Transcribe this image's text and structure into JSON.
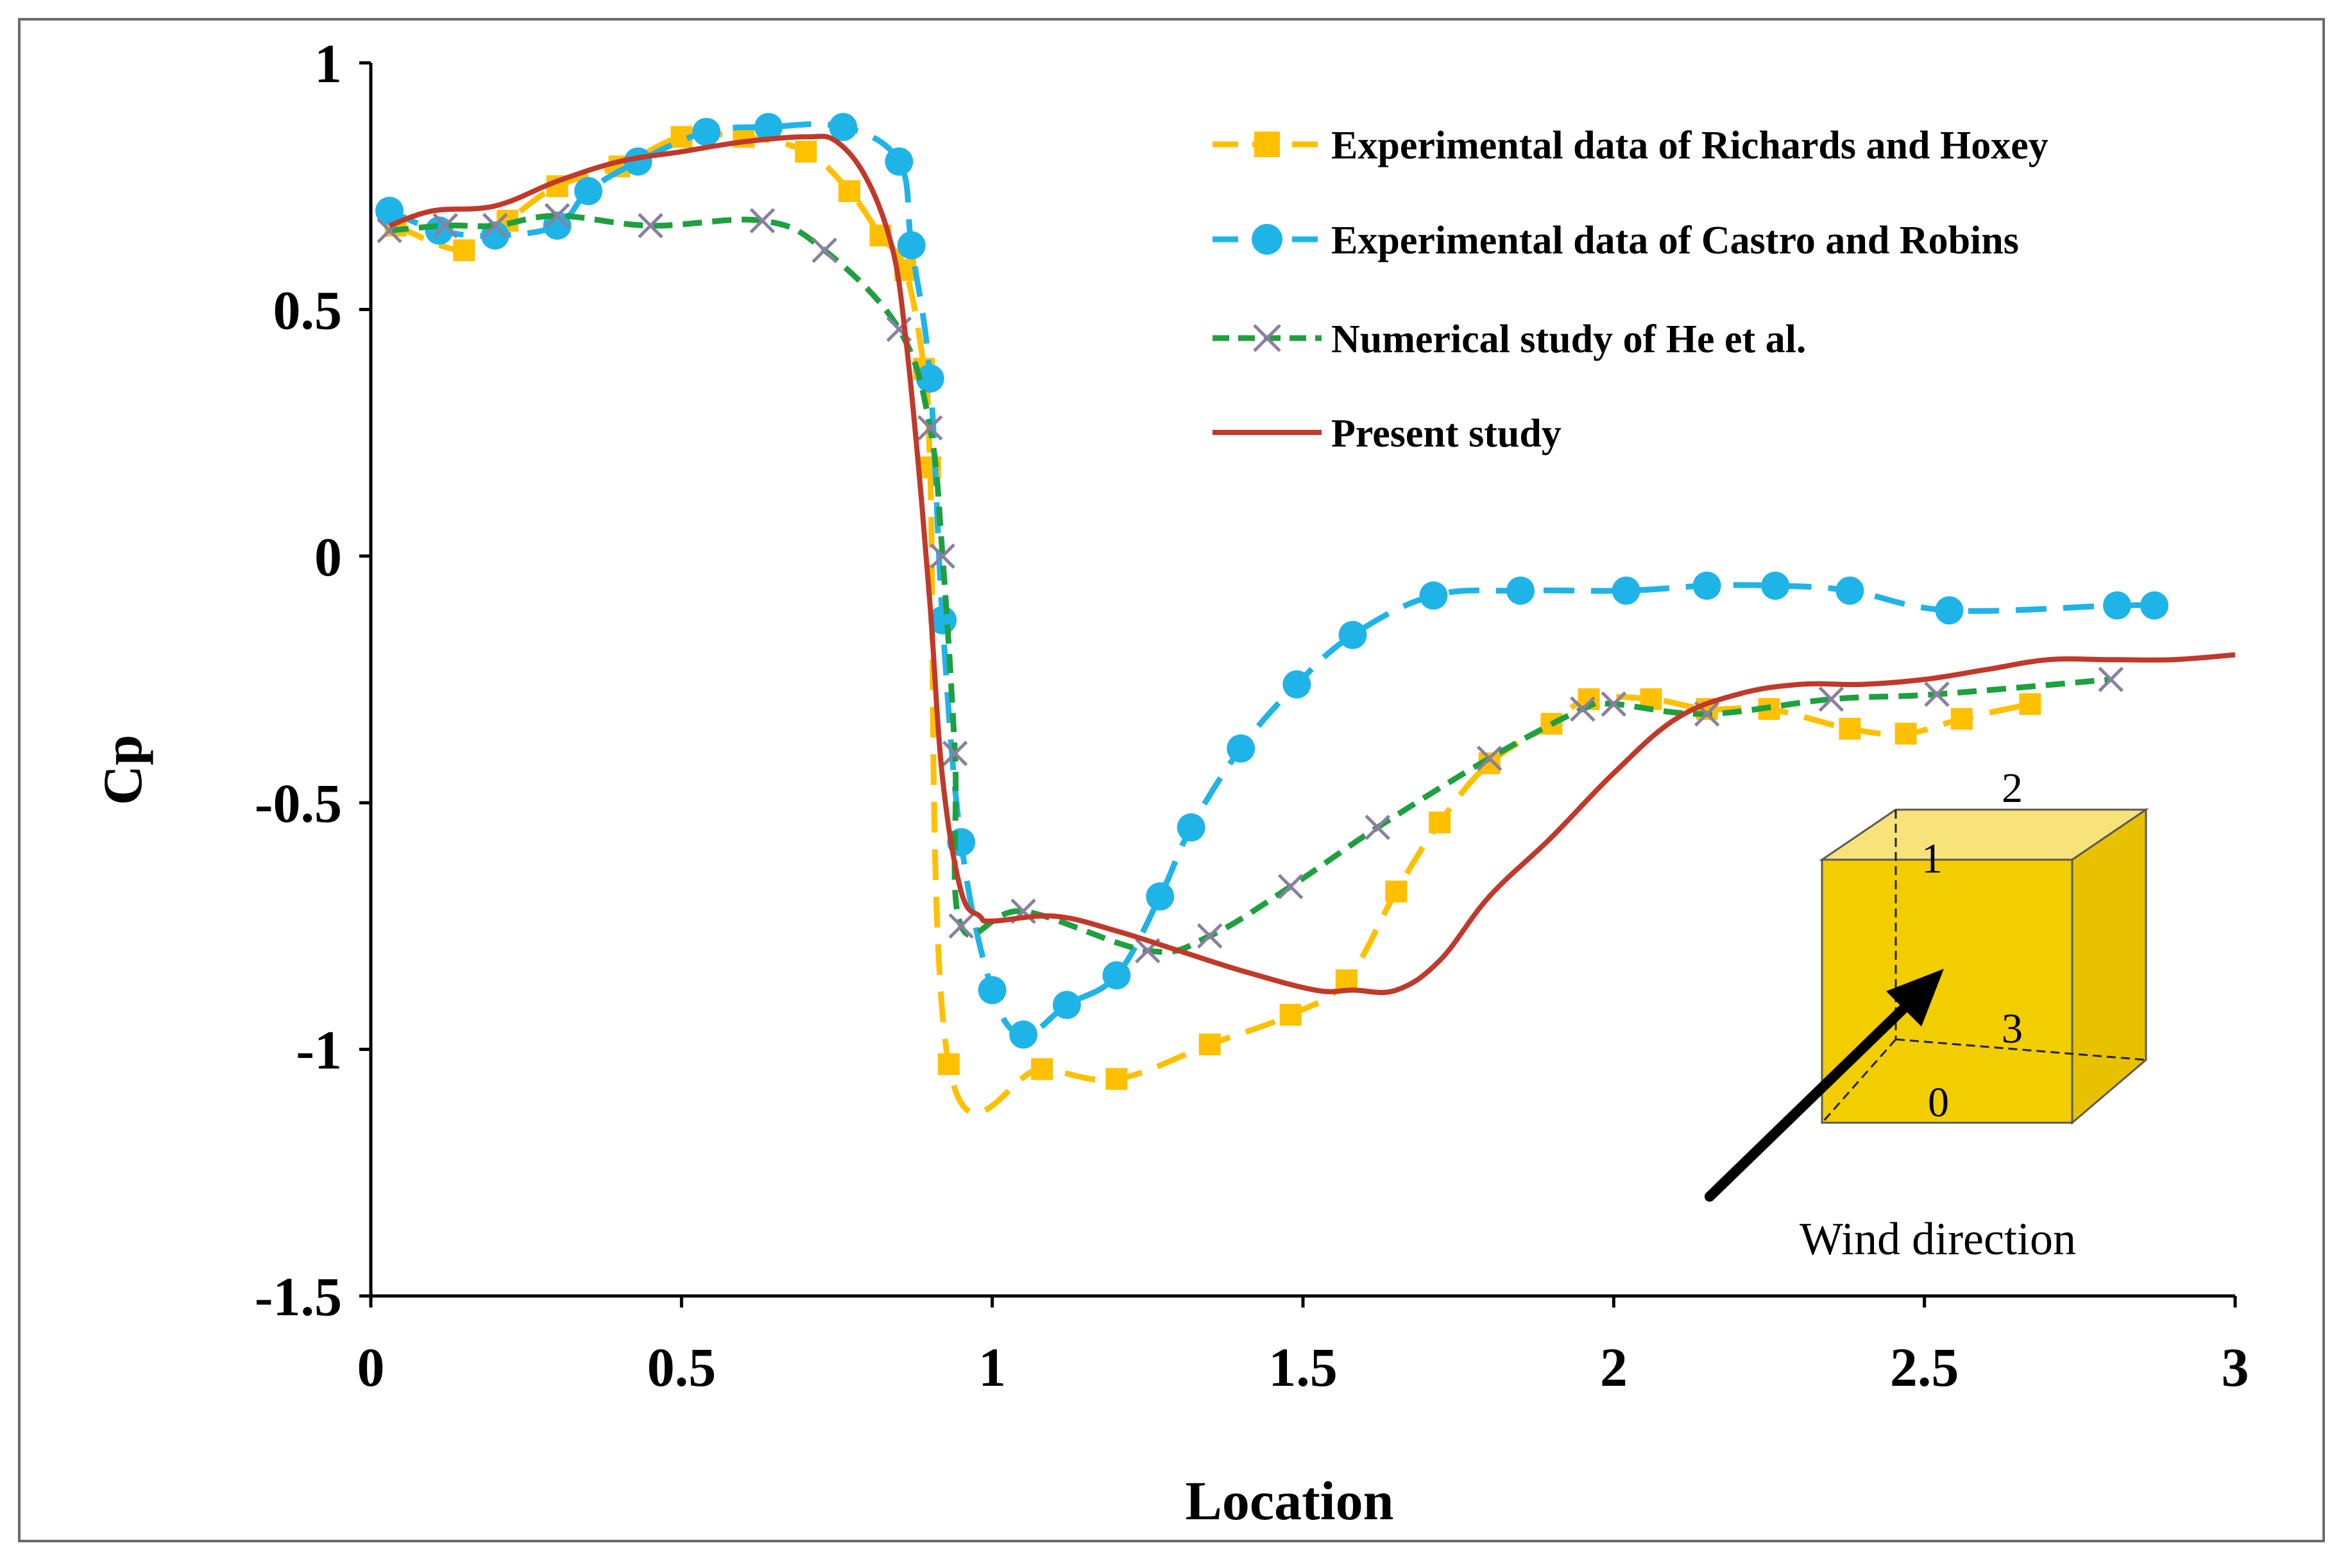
{
  "chart_data": {
    "type": "line",
    "title": "",
    "xlabel": "Location",
    "ylabel": "Cp",
    "xlim": [
      0,
      3
    ],
    "ylim": [
      -1.5,
      1
    ],
    "xticks": [
      0,
      0.5,
      1,
      1.5,
      2,
      2.5,
      3
    ],
    "xtick_labels": [
      "0",
      "0.5",
      "1",
      "1.5",
      "2",
      "2.5",
      "3"
    ],
    "yticks": [
      1,
      0.5,
      0,
      -0.5,
      -1,
      -1.5
    ],
    "ytick_labels": [
      "1",
      "0.5",
      "0",
      "-0.5",
      "-1",
      "-1.5"
    ],
    "grid": false,
    "legend_position": "top-right",
    "series": [
      {
        "name": "Experimental data of Richards and Hoxey",
        "color": "#FFC000",
        "dash": "long-dash",
        "marker": "square",
        "x": [
          0.04,
          0.15,
          0.22,
          0.3,
          0.4,
          0.5,
          0.6,
          0.7,
          0.77,
          0.82,
          0.86,
          0.89,
          0.9,
          0.93,
          1.08,
          1.2,
          1.35,
          1.48,
          1.57,
          1.65,
          1.72,
          1.8,
          1.9,
          1.96,
          2.06,
          2.15,
          2.25,
          2.38,
          2.47,
          2.56,
          2.67
        ],
        "y": [
          0.67,
          0.62,
          0.68,
          0.75,
          0.79,
          0.85,
          0.85,
          0.82,
          0.74,
          0.65,
          0.58,
          0.38,
          0.18,
          -1.03,
          -1.04,
          -1.06,
          -0.99,
          -0.93,
          -0.86,
          -0.68,
          -0.54,
          -0.42,
          -0.34,
          -0.29,
          -0.29,
          -0.31,
          -0.31,
          -0.35,
          -0.36,
          -0.33,
          -0.3
        ]
      },
      {
        "name": "Experimental data of Castro and Robins",
        "color": "#1FB4E8",
        "dash": "long-dash",
        "marker": "circle",
        "x": [
          0.03,
          0.11,
          0.2,
          0.3,
          0.35,
          0.43,
          0.54,
          0.64,
          0.76,
          0.85,
          0.87,
          0.9,
          0.92,
          0.95,
          1.0,
          1.05,
          1.12,
          1.2,
          1.27,
          1.32,
          1.4,
          1.49,
          1.58,
          1.71,
          1.85,
          2.02,
          2.15,
          2.26,
          2.38,
          2.54,
          2.81,
          2.87
        ],
        "y": [
          0.7,
          0.66,
          0.65,
          0.67,
          0.74,
          0.8,
          0.86,
          0.87,
          0.87,
          0.8,
          0.63,
          0.36,
          -0.13,
          -0.58,
          -0.88,
          -0.97,
          -0.91,
          -0.85,
          -0.69,
          -0.55,
          -0.39,
          -0.26,
          -0.16,
          -0.08,
          -0.07,
          -0.07,
          -0.06,
          -0.06,
          -0.07,
          -0.11,
          -0.1,
          -0.1
        ]
      },
      {
        "name": "Numerical study of He et al.",
        "color": "#1FA040",
        "dash": "short-dash",
        "marker": "x",
        "x": [
          0.03,
          0.12,
          0.2,
          0.3,
          0.45,
          0.63,
          0.73,
          0.85,
          0.9,
          0.92,
          0.94,
          0.95,
          1.05,
          1.25,
          1.35,
          1.48,
          1.62,
          1.8,
          1.95,
          2.0,
          2.15,
          2.35,
          2.52,
          2.8
        ],
        "y": [
          0.66,
          0.67,
          0.67,
          0.69,
          0.67,
          0.68,
          0.62,
          0.46,
          0.26,
          0.0,
          -0.4,
          -0.75,
          -0.72,
          -0.8,
          -0.77,
          -0.67,
          -0.55,
          -0.41,
          -0.31,
          -0.3,
          -0.32,
          -0.29,
          -0.28,
          -0.25
        ]
      },
      {
        "name": "Present study",
        "color": "#C0392B",
        "dash": "solid",
        "marker": "none",
        "x": [
          0.03,
          0.1,
          0.2,
          0.3,
          0.4,
          0.5,
          0.6,
          0.7,
          0.75,
          0.8,
          0.84,
          0.86,
          0.88,
          0.9,
          0.92,
          0.95,
          0.98,
          1.0,
          1.1,
          1.2,
          1.3,
          1.4,
          1.52,
          1.58,
          1.65,
          1.72,
          1.8,
          1.9,
          2.0,
          2.1,
          2.2,
          2.3,
          2.4,
          2.5,
          2.6,
          2.7,
          2.8,
          2.9,
          3.0
        ],
        "y": [
          0.67,
          0.7,
          0.71,
          0.76,
          0.8,
          0.82,
          0.84,
          0.85,
          0.84,
          0.76,
          0.62,
          0.45,
          0.2,
          -0.1,
          -0.45,
          -0.68,
          -0.73,
          -0.74,
          -0.73,
          -0.76,
          -0.8,
          -0.84,
          -0.88,
          -0.88,
          -0.88,
          -0.82,
          -0.69,
          -0.57,
          -0.44,
          -0.33,
          -0.28,
          -0.26,
          -0.26,
          -0.25,
          -0.23,
          -0.21,
          -0.21,
          -0.21,
          -0.2
        ]
      }
    ],
    "annotations": {
      "inset_text": "Wind direction",
      "cube_labels": [
        "2",
        "1",
        "3",
        "0"
      ],
      "cube_color": "#F2CD00"
    }
  }
}
